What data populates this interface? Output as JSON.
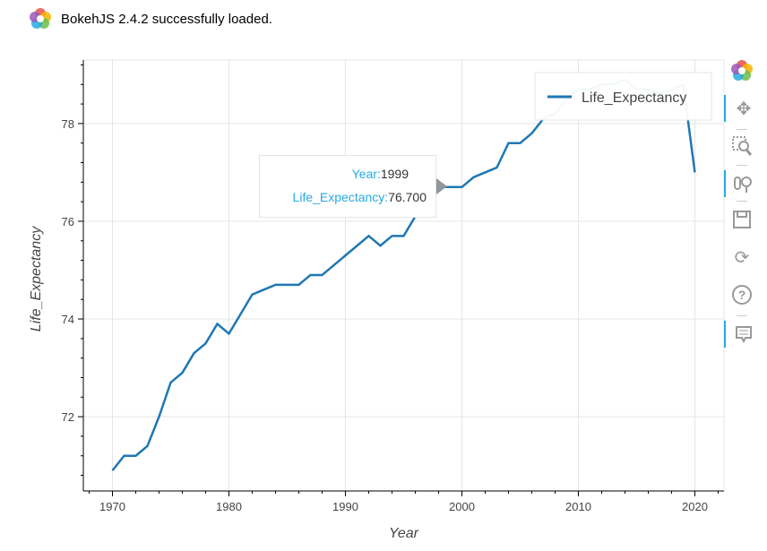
{
  "banner": {
    "text": "BokehJS 2.4.2 successfully loaded."
  },
  "toolbar": {
    "tools": [
      "bokeh-logo",
      "pan-icon",
      "box-zoom-icon",
      "wheel-zoom-icon",
      "save-icon",
      "reset-icon",
      "help-icon",
      "hover-icon"
    ]
  },
  "tooltip": {
    "year_label": "Year:",
    "year_value": "1999",
    "le_label": "Life_Expectancy:",
    "le_value": "76.700"
  },
  "chart_data": {
    "type": "line",
    "xlabel": "Year",
    "ylabel": "Life_Expectancy",
    "xlim": [
      1967.5,
      2022.5
    ],
    "ylim": [
      70.48,
      79.3
    ],
    "x_ticks": [
      1970,
      1980,
      1990,
      2000,
      2010,
      2020
    ],
    "y_ticks": [
      72,
      74,
      76,
      78
    ],
    "grid": true,
    "legend_position": "top-right",
    "color": "#1f77b4",
    "series": [
      {
        "name": "Life_Expectancy",
        "x": [
          1970,
          1971,
          1972,
          1973,
          1974,
          1975,
          1976,
          1977,
          1978,
          1979,
          1980,
          1981,
          1982,
          1983,
          1984,
          1985,
          1986,
          1987,
          1988,
          1989,
          1990,
          1991,
          1992,
          1993,
          1994,
          1995,
          1996,
          1997,
          1998,
          1999,
          2000,
          2001,
          2002,
          2003,
          2004,
          2005,
          2006,
          2007,
          2008,
          2009,
          2010,
          2011,
          2012,
          2013,
          2014,
          2015,
          2016,
          2017,
          2018,
          2019,
          2020
        ],
        "values": [
          70.9,
          71.2,
          71.2,
          71.4,
          72.0,
          72.7,
          72.9,
          73.3,
          73.5,
          73.9,
          73.7,
          74.1,
          74.5,
          74.6,
          74.7,
          74.7,
          74.7,
          74.9,
          74.9,
          75.1,
          75.3,
          75.5,
          75.7,
          75.5,
          75.7,
          75.7,
          76.1,
          76.5,
          76.7,
          76.7,
          76.7,
          76.9,
          77.0,
          77.1,
          77.6,
          77.6,
          77.8,
          78.1,
          78.2,
          78.5,
          78.7,
          78.7,
          78.8,
          78.8,
          78.9,
          78.7,
          78.7,
          78.6,
          78.7,
          78.8,
          77.0
        ]
      }
    ]
  }
}
